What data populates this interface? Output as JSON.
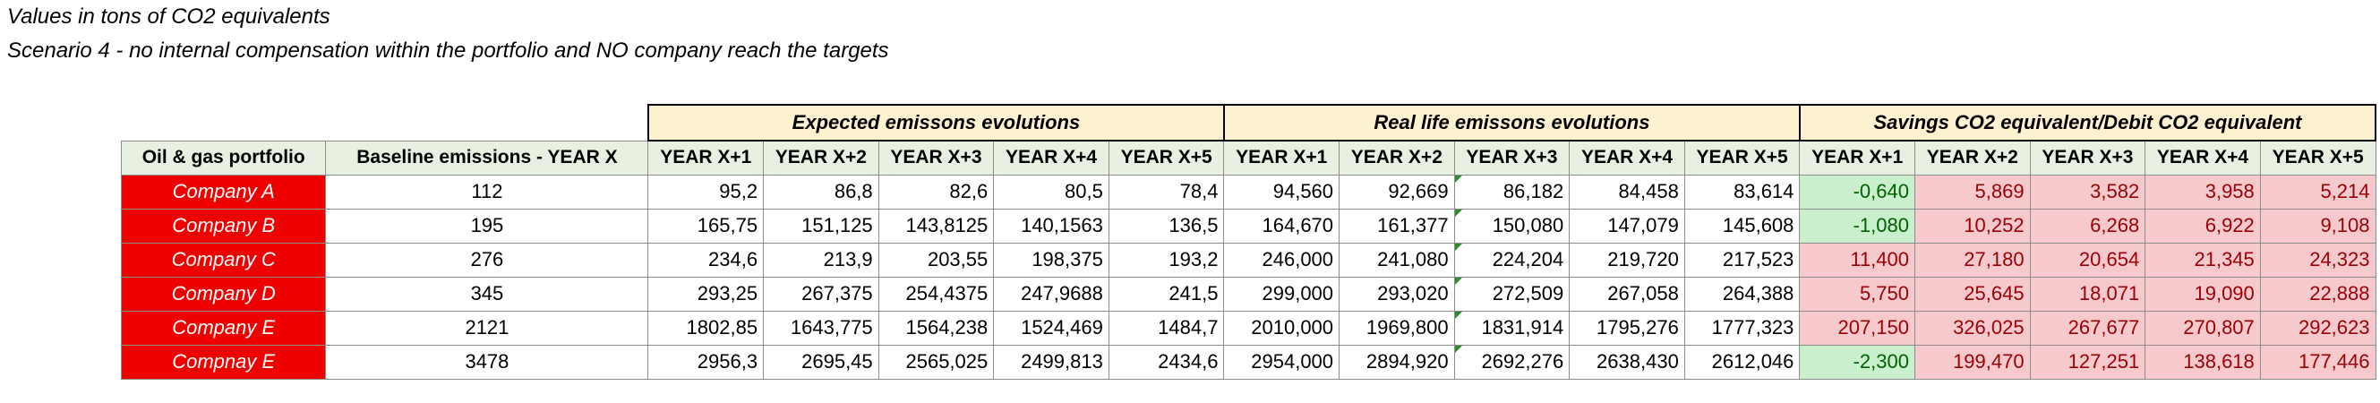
{
  "notes": {
    "line1": "Values in tons of CO2 equivalents",
    "line2": "Scenario 4  - no internal compensation within the portfolio and NO company reach the targets"
  },
  "groups": {
    "expected": "Expected emissons evolutions",
    "real": "Real life emissons evolutions",
    "savings": "Savings CO2 equivalent/Debit CO2 equivalent"
  },
  "headers": {
    "portfolio": "Oil & gas portfolio",
    "baseline": "Baseline emissions - YEAR X",
    "years": [
      "YEAR X+1",
      "YEAR X+2",
      "YEAR X+3",
      "YEAR X+4",
      "YEAR X+5"
    ]
  },
  "rows": [
    {
      "company": "Company A",
      "baseline": "112",
      "expected": [
        "95,2",
        "86,8",
        "82,6",
        "80,5",
        "78,4"
      ],
      "real": [
        "94,560",
        "92,669",
        "86,182",
        "84,458",
        "83,614"
      ],
      "savings": [
        "-0,640",
        "5,869",
        "3,582",
        "3,958",
        "5,214"
      ]
    },
    {
      "company": "Company B",
      "baseline": "195",
      "expected": [
        "165,75",
        "151,125",
        "143,8125",
        "140,1563",
        "136,5"
      ],
      "real": [
        "164,670",
        "161,377",
        "150,080",
        "147,079",
        "145,608"
      ],
      "savings": [
        "-1,080",
        "10,252",
        "6,268",
        "6,922",
        "9,108"
      ]
    },
    {
      "company": "Company C",
      "baseline": "276",
      "expected": [
        "234,6",
        "213,9",
        "203,55",
        "198,375",
        "193,2"
      ],
      "real": [
        "246,000",
        "241,080",
        "224,204",
        "219,720",
        "217,523"
      ],
      "savings": [
        "11,400",
        "27,180",
        "20,654",
        "21,345",
        "24,323"
      ]
    },
    {
      "company": "Company D",
      "baseline": "345",
      "expected": [
        "293,25",
        "267,375",
        "254,4375",
        "247,9688",
        "241,5"
      ],
      "real": [
        "299,000",
        "293,020",
        "272,509",
        "267,058",
        "264,388"
      ],
      "savings": [
        "5,750",
        "25,645",
        "18,071",
        "19,090",
        "22,888"
      ]
    },
    {
      "company": "Company E",
      "baseline": "2121",
      "expected": [
        "1802,85",
        "1643,775",
        "1564,238",
        "1524,469",
        "1484,7"
      ],
      "real": [
        "2010,000",
        "1969,800",
        "1831,914",
        "1795,276",
        "1777,323"
      ],
      "savings": [
        "207,150",
        "326,025",
        "267,677",
        "270,807",
        "292,623"
      ]
    },
    {
      "company": "Compnay E",
      "baseline": "3478",
      "expected": [
        "2956,3",
        "2695,45",
        "2565,025",
        "2499,813",
        "2434,6"
      ],
      "real": [
        "2954,000",
        "2894,920",
        "2692,276",
        "2638,430",
        "2612,046"
      ],
      "savings": [
        "-2,300",
        "199,470",
        "127,251",
        "138,618",
        "177,446"
      ]
    }
  ]
}
